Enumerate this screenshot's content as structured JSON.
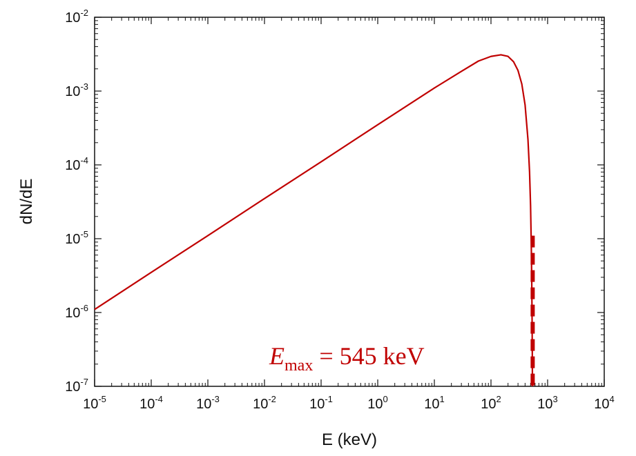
{
  "chart_data": {
    "type": "line",
    "title": "",
    "xlabel": "E (keV)",
    "ylabel": "dN/dE",
    "x_scale": "log",
    "y_scale": "log",
    "xlim": [
      1e-05,
      10000.0
    ],
    "ylim": [
      1e-07,
      0.01
    ],
    "x_ticks": [
      {
        "base": "10",
        "exp": "-5"
      },
      {
        "base": "10",
        "exp": "-4"
      },
      {
        "base": "10",
        "exp": "-3"
      },
      {
        "base": "10",
        "exp": "-2"
      },
      {
        "base": "10",
        "exp": "-1"
      },
      {
        "base": "10",
        "exp": "0"
      },
      {
        "base": "10",
        "exp": "1"
      },
      {
        "base": "10",
        "exp": "2"
      },
      {
        "base": "10",
        "exp": "3"
      },
      {
        "base": "10",
        "exp": "4"
      }
    ],
    "y_ticks": [
      {
        "base": "10",
        "exp": "-7"
      },
      {
        "base": "10",
        "exp": "-6"
      },
      {
        "base": "10",
        "exp": "-5"
      },
      {
        "base": "10",
        "exp": "-4"
      },
      {
        "base": "10",
        "exp": "-3"
      },
      {
        "base": "10",
        "exp": "-2"
      }
    ],
    "grid": false,
    "series": [
      {
        "color": "#c00000",
        "x": [
          1e-05,
          0.0001,
          0.001,
          0.01,
          0.1,
          1,
          10,
          30,
          60,
          100,
          150,
          200,
          250,
          300,
          350,
          400,
          450,
          480,
          500,
          515,
          525,
          532,
          537,
          540
        ],
        "y": [
          1.1e-06,
          3.5e-06,
          1.1e-05,
          3.5e-05,
          0.00011,
          0.00035,
          0.0011,
          0.00185,
          0.00255,
          0.00295,
          0.0031,
          0.00295,
          0.0025,
          0.0019,
          0.00125,
          0.00065,
          0.00022,
          8e-05,
          2.8e-05,
          8e-06,
          2.5e-06,
          8e-07,
          2.5e-07,
          1e-07
        ]
      }
    ],
    "reference_line": {
      "x": 545,
      "y_top": 1.1e-05,
      "y_bottom": 1e-07,
      "style": "dashed",
      "color": "#c00000"
    },
    "annotation": {
      "var": "E",
      "sub": "max",
      "rest": " = 545 keV",
      "color": "#c00000"
    }
  }
}
